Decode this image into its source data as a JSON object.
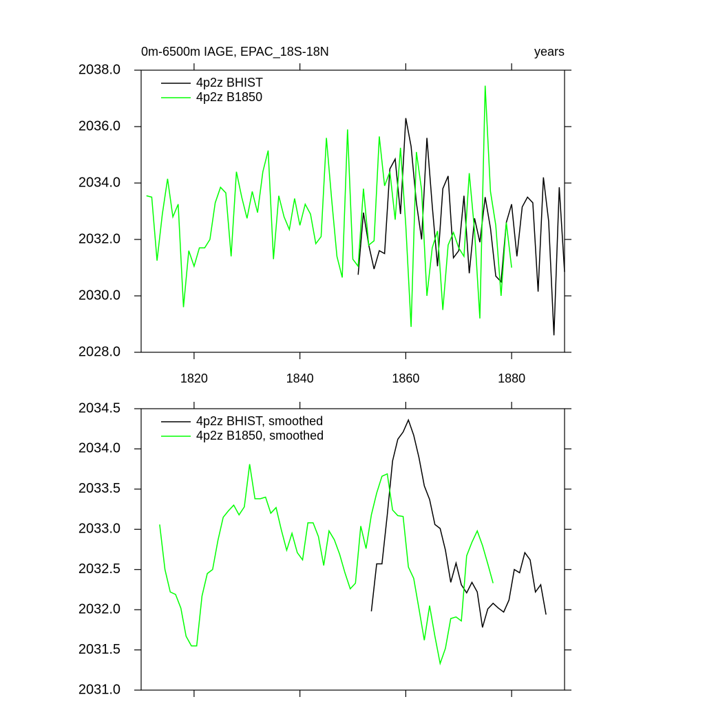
{
  "chart_data": [
    {
      "type": "line",
      "title": "0m-6500m IAGE, EPAC_18S-18N",
      "subtitle": "years",
      "xlim": [
        1810,
        1890
      ],
      "xticks": [
        1820,
        1840,
        1860,
        1880
      ],
      "show_xtick_labels": true,
      "ylim": [
        2028,
        2038
      ],
      "yticks": [
        {
          "value": 2028,
          "label": "2028.0"
        },
        {
          "value": 2030,
          "label": "2030.0"
        },
        {
          "value": 2032,
          "label": "2032.0"
        },
        {
          "value": 2034,
          "label": "2034.0"
        },
        {
          "value": 2036,
          "label": "2036.0"
        },
        {
          "value": 2038,
          "label": "2038.0"
        }
      ],
      "series": [
        {
          "name": "4p2z BHIST",
          "color": "#000000",
          "x": [
            1851,
            1852,
            1853,
            1854,
            1855,
            1856,
            1857,
            1858,
            1859,
            1860,
            1861,
            1862,
            1863,
            1864,
            1865,
            1866,
            1867,
            1868,
            1869,
            1870,
            1871,
            1872,
            1873,
            1874,
            1875,
            1876,
            1877,
            1878,
            1879,
            1880,
            1881,
            1882,
            1883,
            1884,
            1885,
            1886,
            1887,
            1888,
            1889,
            1890
          ],
          "values": [
            2030.75,
            2032.95,
            2031.8,
            2030.95,
            2031.6,
            2031.5,
            2034.5,
            2034.85,
            2032.9,
            2036.3,
            2035.3,
            2033.3,
            2032.0,
            2035.6,
            2033.2,
            2031.05,
            2033.8,
            2034.25,
            2031.35,
            2031.6,
            2033.55,
            2030.8,
            2032.75,
            2031.9,
            2033.5,
            2032.4,
            2030.7,
            2030.5,
            2032.6,
            2033.25,
            2031.4,
            2033.15,
            2033.5,
            2033.3,
            2030.15,
            2034.2,
            2032.65,
            2028.6,
            2033.85,
            2030.85
          ]
        },
        {
          "name": "4p2z B1850",
          "color": "#00ff00",
          "x": [
            1811,
            1812,
            1813,
            1814,
            1815,
            1816,
            1817,
            1818,
            1819,
            1820,
            1821,
            1822,
            1823,
            1824,
            1825,
            1826,
            1827,
            1828,
            1829,
            1830,
            1831,
            1832,
            1833,
            1834,
            1835,
            1836,
            1837,
            1838,
            1839,
            1840,
            1841,
            1842,
            1843,
            1844,
            1845,
            1846,
            1847,
            1848,
            1849,
            1850,
            1851,
            1852,
            1853,
            1854,
            1855,
            1856,
            1857,
            1858,
            1859,
            1860,
            1861,
            1862,
            1863,
            1864,
            1865,
            1866,
            1867,
            1868,
            1869,
            1870,
            1871,
            1872,
            1873,
            1874,
            1875,
            1876,
            1877,
            1878,
            1879,
            1880
          ],
          "values": [
            2033.55,
            2033.5,
            2031.25,
            2032.9,
            2034.15,
            2032.8,
            2033.25,
            2029.6,
            2031.6,
            2031.05,
            2031.7,
            2031.7,
            2032.0,
            2033.3,
            2033.85,
            2033.65,
            2031.4,
            2034.4,
            2033.5,
            2032.75,
            2033.7,
            2032.95,
            2034.4,
            2035.15,
            2031.3,
            2033.55,
            2032.8,
            2032.35,
            2033.45,
            2032.5,
            2033.25,
            2032.9,
            2031.85,
            2032.1,
            2035.6,
            2033.4,
            2031.4,
            2030.65,
            2035.9,
            2031.3,
            2031.05,
            2033.8,
            2031.8,
            2031.95,
            2035.65,
            2033.9,
            2034.4,
            2032.7,
            2035.25,
            2032.5,
            2028.9,
            2035.1,
            2033.75,
            2030.0,
            2031.7,
            2032.3,
            2029.5,
            2031.8,
            2032.25,
            2031.7,
            2031.4,
            2034.35,
            2032.3,
            2029.2,
            2037.45,
            2033.7,
            2032.5,
            2030.0,
            2032.6,
            2031.0
          ]
        }
      ]
    },
    {
      "type": "line",
      "xlim": [
        1810,
        1890
      ],
      "xticks": [
        1820,
        1840,
        1860,
        1880
      ],
      "show_xtick_labels": false,
      "ylim": [
        2031,
        2034.5
      ],
      "yticks": [
        {
          "value": 2031,
          "label": "2031.0"
        },
        2031.5,
        {
          "value": 2032,
          "label": "2032.0"
        },
        2032.5,
        {
          "value": 2033,
          "label": "2033.0"
        },
        2033.5,
        {
          "value": 2034,
          "label": "2034.0"
        },
        2034.5
      ],
      "series": [
        {
          "name": "4p2z BHIST, smoothed",
          "color": "#000000",
          "x": [
            1853.5,
            1854.5,
            1855.5,
            1856.5,
            1857.5,
            1858.5,
            1859.5,
            1860.5,
            1861.5,
            1862.5,
            1863.5,
            1864.5,
            1865.5,
            1866.5,
            1867.5,
            1868.5,
            1869.5,
            1870.5,
            1871.5,
            1872.5,
            1873.5,
            1874.5,
            1875.5,
            1876.5,
            1877.5,
            1878.5,
            1879.5,
            1880.5,
            1881.5,
            1882.5,
            1883.5,
            1884.5,
            1885.5,
            1886.5
          ],
          "values": [
            2031.98,
            2032.57,
            2032.57,
            2033.18,
            2033.85,
            2034.12,
            2034.21,
            2034.36,
            2034.17,
            2033.89,
            2033.54,
            2033.37,
            2033.06,
            2033.01,
            2032.74,
            2032.34,
            2032.58,
            2032.31,
            2032.21,
            2032.34,
            2032.22,
            2031.78,
            2032.01,
            2032.08,
            2032.02,
            2031.97,
            2032.12,
            2032.5,
            2032.46,
            2032.71,
            2032.62,
            2032.22,
            2032.31,
            2031.94
          ]
        },
        {
          "name": "4p2z B1850, smoothed",
          "color": "#00ff00",
          "x": [
            1813.5,
            1814.5,
            1815.5,
            1816.5,
            1817.5,
            1818.5,
            1819.5,
            1820.5,
            1821.5,
            1822.5,
            1823.5,
            1824.5,
            1825.5,
            1826.5,
            1827.5,
            1828.5,
            1829.5,
            1830.5,
            1831.5,
            1832.5,
            1833.5,
            1834.5,
            1835.5,
            1836.5,
            1837.5,
            1838.5,
            1839.5,
            1840.5,
            1841.5,
            1842.5,
            1843.5,
            1844.5,
            1845.5,
            1846.5,
            1847.5,
            1848.5,
            1849.5,
            1850.5,
            1851.5,
            1852.5,
            1853.5,
            1854.5,
            1855.5,
            1856.5,
            1857.5,
            1858.5,
            1859.5,
            1860.5,
            1861.5,
            1862.5,
            1863.5,
            1864.5,
            1865.5,
            1866.5,
            1867.5,
            1868.5,
            1869.5,
            1870.5,
            1871.5,
            1872.5,
            1873.5,
            1874.5,
            1875.5,
            1876.5
          ],
          "values": [
            2033.06,
            2032.5,
            2032.22,
            2032.19,
            2032.02,
            2031.67,
            2031.55,
            2031.55,
            2032.17,
            2032.45,
            2032.5,
            2032.86,
            2033.15,
            2033.23,
            2033.3,
            2033.18,
            2033.28,
            2033.81,
            2033.38,
            2033.38,
            2033.4,
            2033.2,
            2033.27,
            2032.99,
            2032.74,
            2032.95,
            2032.71,
            2032.62,
            2033.08,
            2033.08,
            2032.91,
            2032.55,
            2032.98,
            2032.87,
            2032.69,
            2032.46,
            2032.26,
            2032.33,
            2033.04,
            2032.76,
            2033.18,
            2033.45,
            2033.66,
            2033.69,
            2033.24,
            2033.17,
            2033.16,
            2032.53,
            2032.39,
            2032.01,
            2031.62,
            2032.05,
            2031.67,
            2031.33,
            2031.52,
            2031.89,
            2031.91,
            2031.86,
            2032.67,
            2032.84,
            2032.98,
            2032.8,
            2032.57,
            2032.33
          ]
        }
      ]
    }
  ]
}
